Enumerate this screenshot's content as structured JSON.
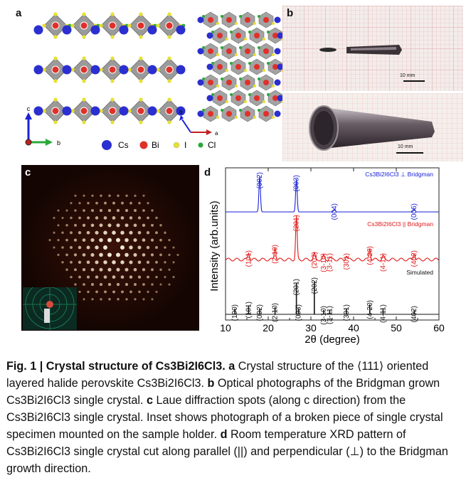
{
  "panels": {
    "a": {
      "letter": "a",
      "axes": {
        "c": "c",
        "b": "b",
        "a": "a"
      },
      "legend": [
        {
          "symbol": "Cs",
          "color": "#2b2fd0"
        },
        {
          "symbol": "Bi",
          "color": "#e0302a"
        },
        {
          "symbol": "I",
          "color": "#e8e030"
        },
        {
          "symbol": "Cl",
          "color": "#2aa838"
        }
      ]
    },
    "b": {
      "letter": "b",
      "scale_top": "10 mm",
      "scale_bottom": "10 mm"
    },
    "c": {
      "letter": "c"
    },
    "d": {
      "letter": "d",
      "xlabel": "2θ (degree)",
      "ylabel": "Intensity (arb.units)",
      "xticks": [
        "10",
        "20",
        "30",
        "40",
        "50",
        "60"
      ],
      "traces": [
        {
          "label": "Cs3Bi2I6Cl3 ⊥ Bridgman",
          "color": "#1a22d6",
          "peaks": [
            {
              "hkl": "(002)",
              "x": 18.0
            },
            {
              "hkl": "(003)",
              "x": 26.6
            },
            {
              "hkl": "(004)",
              "x": 35.5
            },
            {
              "hkl": "(006)",
              "x": 54.2
            }
          ]
        },
        {
          "label": "Cs3Bi2I6Cl3 || Bridgman",
          "color": "#e01818",
          "peaks": [
            {
              "hkl": "(101)",
              "x": 15.4
            },
            {
              "hkl": "(2-10)",
              "x": 21.6
            },
            {
              "hkl": "(201)",
              "x": 26.6
            },
            {
              "hkl": "(202)",
              "x": 30.8
            },
            {
              "hkl": "(3-10)",
              "x": 33.0
            },
            {
              "hkl": "(3-11)",
              "x": 34.4
            },
            {
              "hkl": "(301)",
              "x": 38.3
            },
            {
              "hkl": "(4-20)",
              "x": 43.8
            },
            {
              "hkl": "(4-11)",
              "x": 46.9
            },
            {
              "hkl": "(402)",
              "x": 54.2
            }
          ]
        },
        {
          "label": "Simulated",
          "color": "#111111",
          "peaks": [
            {
              "hkl": "(100)",
              "x": 12.2
            },
            {
              "hkl": "(101)",
              "x": 15.4
            },
            {
              "hkl": "(002)",
              "x": 18.0
            },
            {
              "hkl": "(2-10)",
              "x": 21.6
            },
            {
              "hkl": "(201)",
              "x": 26.6
            },
            {
              "hkl": "(003)",
              "x": 27.1
            },
            {
              "hkl": "(202)",
              "x": 30.8
            },
            {
              "hkl": "(3-10)",
              "x": 33.0
            },
            {
              "hkl": "(3-11)",
              "x": 34.4
            },
            {
              "hkl": "(301)",
              "x": 38.3
            },
            {
              "hkl": "(4-20)",
              "x": 43.8
            },
            {
              "hkl": "(4-11)",
              "x": 46.9
            },
            {
              "hkl": "(402)",
              "x": 54.2
            }
          ]
        }
      ]
    }
  },
  "caption": {
    "fig": "Fig. 1 | ",
    "title": "Crystal structure of Cs3Bi2I6Cl3.",
    "a": "a",
    "a_text": " Crystal structure of the ⟨111⟩ oriented layered halide perovskite Cs3Bi2I6Cl3. ",
    "b": "b",
    "b_text": " Optical photographs of the Bridgman grown Cs3Bi2I6Cl3 single crystal. ",
    "c": "c",
    "c_text": " Laue diffraction spots (along c direction) from the Cs3Bi2I6Cl3 single crystal. Inset shows photograph of a broken piece of single crystal specimen mounted on the sample holder. ",
    "d": "d",
    "d_text": " Room temperature XRD pattern of Cs3Bi2I6Cl3 single crystal cut along parallel (||) and perpendicular (⊥) to the Bridgman growth direction."
  }
}
